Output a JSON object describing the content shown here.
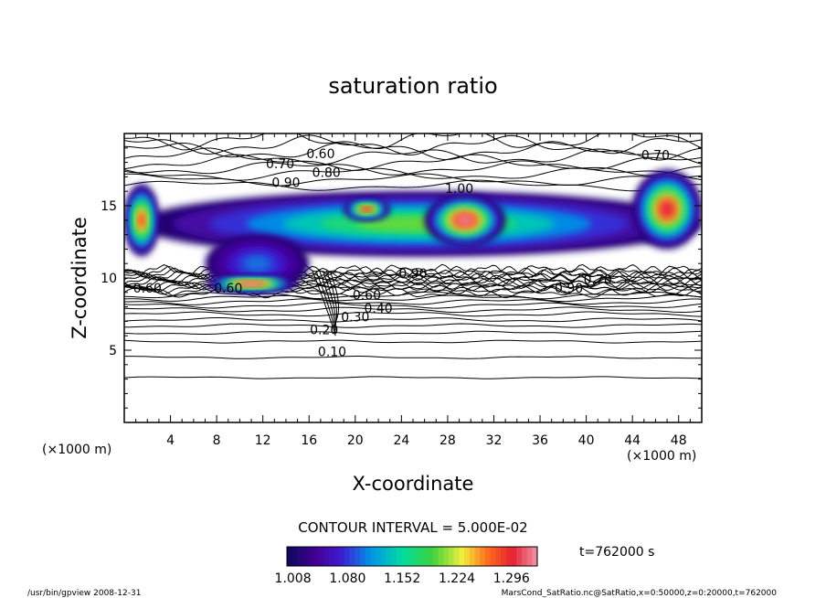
{
  "chart_data": {
    "type": "heatmap",
    "title": "saturation ratio",
    "xlabel": "X-coordinate",
    "ylabel": "Z-coordinate",
    "x_unit_left": "(×1000 m)",
    "x_unit_right": "(×1000 m)",
    "xlim": [
      0,
      50
    ],
    "ylim": [
      0,
      20
    ],
    "x_ticks": [
      4,
      8,
      12,
      16,
      20,
      24,
      28,
      32,
      36,
      40,
      44,
      48
    ],
    "y_ticks": [
      5,
      10,
      15
    ],
    "contour_interval_text": "CONTOUR INTERVAL = 5.000E-02",
    "time_text": "t=762000 s",
    "colorbar": {
      "min": 1.0,
      "max": 1.33,
      "tick_labels": [
        "1.008",
        "1.080",
        "1.152",
        "1.224",
        "1.296"
      ],
      "tick_values": [
        1.008,
        1.08,
        1.152,
        1.224,
        1.296
      ]
    },
    "contour_labels": [
      {
        "text": "0.10",
        "x": 18.0,
        "y": 4.6
      },
      {
        "text": "0.20",
        "x": 17.3,
        "y": 6.1
      },
      {
        "text": "0.30",
        "x": 20.0,
        "y": 7.0
      },
      {
        "text": "0.40",
        "x": 22.0,
        "y": 7.6
      },
      {
        "text": "0.60",
        "x": 21.0,
        "y": 8.5
      },
      {
        "text": "0.60",
        "x": 9.0,
        "y": 9.0
      },
      {
        "text": "0.60",
        "x": 2.0,
        "y": 9.0
      },
      {
        "text": "0.60",
        "x": 17.0,
        "y": 18.3
      },
      {
        "text": "0.70",
        "x": 13.5,
        "y": 17.6
      },
      {
        "text": "0.80",
        "x": 17.5,
        "y": 17.0
      },
      {
        "text": "0.90",
        "x": 14.0,
        "y": 16.3
      },
      {
        "text": "1.00",
        "x": 29.0,
        "y": 15.9
      },
      {
        "text": "0.70",
        "x": 46.0,
        "y": 18.2
      },
      {
        "text": "0.90",
        "x": 25.0,
        "y": 10.0
      },
      {
        "text": "0.90",
        "x": 38.5,
        "y": 9.0
      },
      {
        "text": "0.70",
        "x": 41.0,
        "y": 9.6
      }
    ],
    "cloud_regions": [
      {
        "name": "upper-layer",
        "x": [
          1,
          50
        ],
        "y": [
          11.5,
          16.0
        ],
        "peak": 1.2
      },
      {
        "name": "left-edge",
        "x": [
          0,
          3
        ],
        "y": [
          11.5,
          16.5
        ],
        "peak": 1.28
      },
      {
        "name": "central-core",
        "x": [
          26,
          33
        ],
        "y": [
          12.2,
          15.8
        ],
        "peak": 1.32
      },
      {
        "name": "upper-red",
        "x": [
          19,
          23
        ],
        "y": [
          14.0,
          15.5
        ],
        "peak": 1.3
      },
      {
        "name": "right-core",
        "x": [
          44,
          50
        ],
        "y": [
          12.0,
          17.5
        ],
        "peak": 1.3
      },
      {
        "name": "lower-left-cloud",
        "x": [
          7,
          16
        ],
        "y": [
          9.0,
          13.0
        ],
        "peak": 1.1
      },
      {
        "name": "lower-left-base",
        "x": [
          7,
          15
        ],
        "y": [
          9.0,
          10.2
        ],
        "peak": 1.33
      }
    ]
  },
  "footer": {
    "left": "/usr/bin/gpview   2008-12-31",
    "right": "MarsCond_SatRatio.nc@SatRatio,x=0:50000,z=0:20000,t=762000"
  }
}
